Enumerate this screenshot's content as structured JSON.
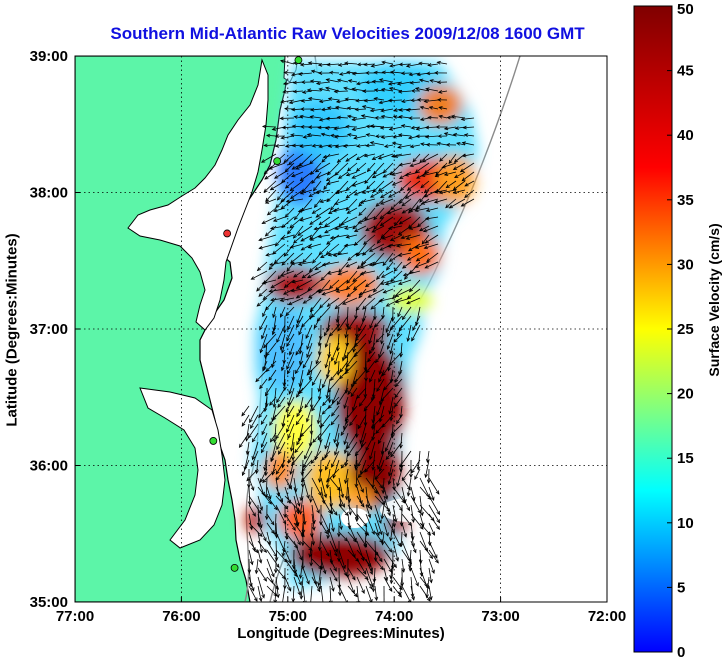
{
  "title": "Southern Mid-Atlantic Raw Velocities 2009/12/08 1600 GMT",
  "map": {
    "xlabel": "Longitude (Degrees:Minutes)",
    "ylabel": "Latitude (Degrees:Minutes)",
    "x_ticks": [
      "77:00",
      "76:00",
      "75:00",
      "74:00",
      "73:00",
      "72:00"
    ],
    "y_ticks": [
      "39:00",
      "38:00",
      "37:00",
      "36:00",
      "35:00"
    ],
    "lon_range": [
      -77,
      -72
    ],
    "lat_range": [
      35,
      39
    ],
    "grid": "dotted",
    "colors": {
      "land": "#5cf5a8",
      "ocean": "#ffffff",
      "coast": "#000000",
      "bathymetry": "#8a8a8a"
    },
    "stations": [
      {
        "lon": -74.9,
        "lat": 38.97,
        "color": "#33dd33"
      },
      {
        "lon": -75.1,
        "lat": 38.23,
        "color": "#33dd33"
      },
      {
        "lon": -75.57,
        "lat": 37.7,
        "color": "#ee3333"
      },
      {
        "lon": -75.7,
        "lat": 36.18,
        "color": "#33dd33"
      },
      {
        "lon": -75.5,
        "lat": 35.25,
        "color": "#33dd33"
      }
    ]
  },
  "colorbar": {
    "label": "Surface Velocity (cm/s)",
    "min": 0,
    "max": 50,
    "ticks": [
      "50",
      "45",
      "40",
      "35",
      "30",
      "25",
      "20",
      "15",
      "10",
      "5",
      "0"
    ],
    "colormap": "jet"
  }
}
